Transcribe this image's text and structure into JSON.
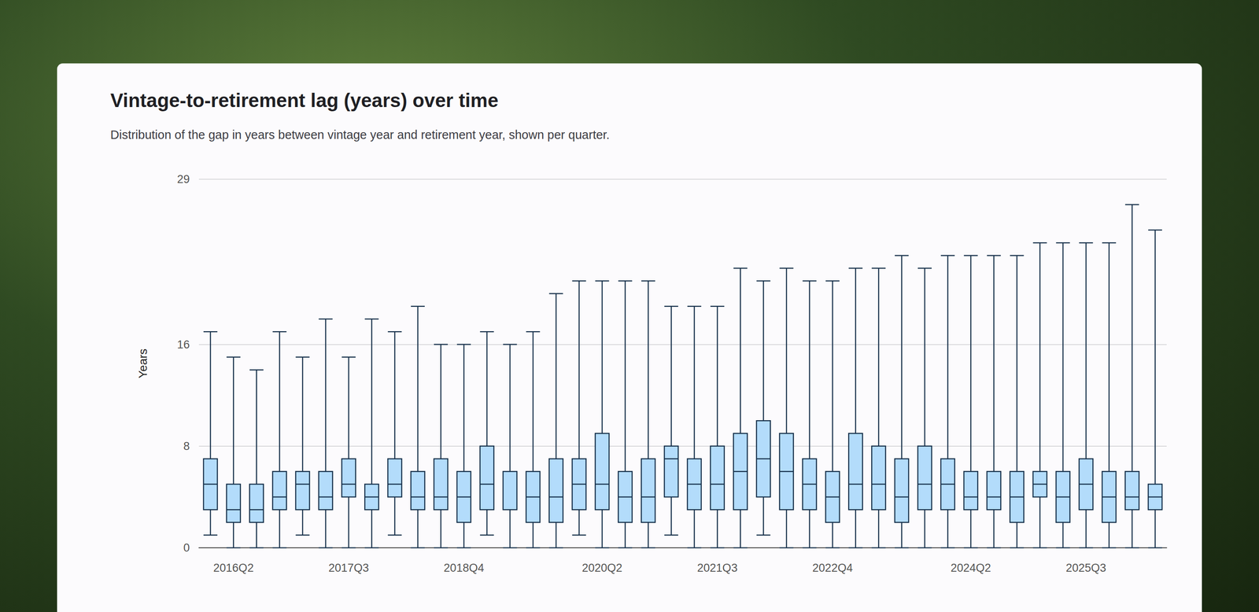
{
  "chart_data": {
    "type": "boxplot",
    "title": "Vintage-to-retirement lag (years) over time",
    "subtitle": "Distribution of the gap in years between vintage year and retirement year, shown per quarter.",
    "y_label": "Years",
    "categories": [
      null,
      "2016Q2",
      null,
      null,
      null,
      null,
      "2017Q3",
      null,
      null,
      null,
      null,
      "2018Q4",
      null,
      null,
      null,
      null,
      null,
      "2020Q2",
      null,
      null,
      null,
      null,
      "2021Q3",
      null,
      null,
      null,
      null,
      "2022Q4",
      null,
      null,
      null,
      null,
      null,
      "2024Q2",
      null,
      null,
      null,
      null,
      "2025Q3",
      null,
      null,
      null
    ],
    "values": [
      [
        1,
        3,
        5,
        7,
        17
      ],
      [
        0,
        2,
        3,
        5,
        15
      ],
      [
        0,
        2,
        3,
        5,
        14
      ],
      [
        0,
        3,
        4,
        6,
        17
      ],
      [
        1,
        3,
        5,
        6,
        15
      ],
      [
        0,
        3,
        4,
        6,
        18
      ],
      [
        0,
        4,
        5,
        7,
        15
      ],
      [
        0,
        3,
        4,
        5,
        18
      ],
      [
        1,
        4,
        5,
        7,
        17
      ],
      [
        0,
        3,
        4,
        6,
        19
      ],
      [
        0,
        3,
        4,
        7,
        16
      ],
      [
        0,
        2,
        4,
        6,
        16
      ],
      [
        1,
        3,
        5,
        8,
        17
      ],
      [
        0,
        3,
        3,
        6,
        16
      ],
      [
        0,
        2,
        4,
        6,
        17
      ],
      [
        0,
        2,
        4,
        7,
        20
      ],
      [
        1,
        3,
        5,
        7,
        21
      ],
      [
        0,
        3,
        5,
        9,
        21
      ],
      [
        0,
        2,
        4,
        6,
        21
      ],
      [
        0,
        2,
        4,
        7,
        21
      ],
      [
        1,
        4,
        7,
        8,
        19
      ],
      [
        0,
        3,
        5,
        7,
        19
      ],
      [
        0,
        3,
        5,
        8,
        19
      ],
      [
        0,
        3,
        6,
        9,
        22
      ],
      [
        1,
        4,
        7,
        10,
        21
      ],
      [
        0,
        3,
        6,
        9,
        22
      ],
      [
        0,
        3,
        5,
        7,
        21
      ],
      [
        0,
        2,
        4,
        6,
        21
      ],
      [
        0,
        3,
        5,
        9,
        22
      ],
      [
        0,
        3,
        5,
        8,
        22
      ],
      [
        0,
        2,
        4,
        7,
        23
      ],
      [
        0,
        3,
        5,
        8,
        22
      ],
      [
        0,
        3,
        5,
        7,
        23
      ],
      [
        0,
        3,
        4,
        6,
        23
      ],
      [
        0,
        3,
        4,
        6,
        23
      ],
      [
        0,
        2,
        4,
        6,
        23
      ],
      [
        0,
        4,
        5,
        6,
        24
      ],
      [
        0,
        2,
        4,
        6,
        24
      ],
      [
        0,
        3,
        5,
        7,
        24
      ],
      [
        0,
        2,
        4,
        6,
        24
      ],
      [
        0,
        3,
        4,
        6,
        27
      ],
      [
        0,
        3,
        4,
        5,
        25
      ]
    ],
    "color": "#b3dcfb",
    "ylim": [
      0,
      29
    ],
    "yticks": [
      0,
      8,
      16,
      29
    ],
    "grid": true
  }
}
